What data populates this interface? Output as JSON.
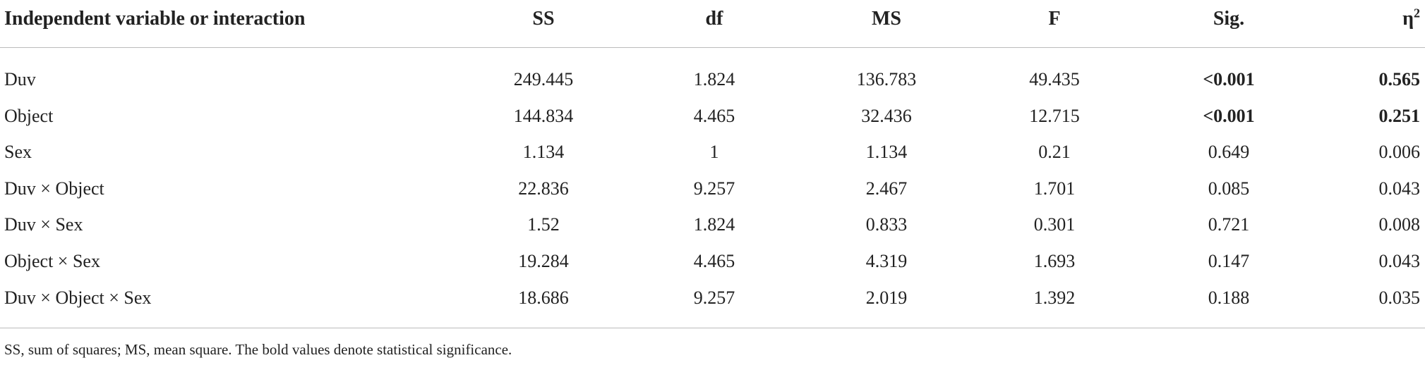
{
  "table": {
    "header": [
      "Independent variable or interaction",
      "SS",
      "df",
      "MS",
      "F",
      "Sig.",
      {
        "text": "η",
        "sup": "2"
      }
    ],
    "rows": [
      [
        "Duv",
        "249.445",
        "1.824",
        "136.783",
        "49.435",
        "<0.001",
        "0.565"
      ],
      [
        "Object",
        "144.834",
        "4.465",
        "32.436",
        "12.715",
        "<0.001",
        "0.251"
      ],
      [
        "Sex",
        "1.134",
        "1",
        "1.134",
        "0.21",
        "0.649",
        "0.006"
      ],
      [
        "Duv × Object",
        "22.836",
        "9.257",
        "2.467",
        "1.701",
        "0.085",
        "0.043"
      ],
      [
        "Duv × Sex",
        "1.52",
        "1.824",
        "0.833",
        "0.301",
        "0.721",
        "0.008"
      ],
      [
        "Object × Sex",
        "19.284",
        "4.465",
        "4.319",
        "1.693",
        "0.147",
        "0.043"
      ],
      [
        "Duv × Object × Sex",
        "18.686",
        "9.257",
        "2.019",
        "1.392",
        "0.188",
        "0.035"
      ]
    ],
    "bold_cells": [
      [
        0,
        5
      ],
      [
        0,
        6
      ],
      [
        1,
        5
      ],
      [
        1,
        6
      ]
    ],
    "footnote": "SS, sum of squares; MS, mean square. The bold values denote statistical significance."
  }
}
